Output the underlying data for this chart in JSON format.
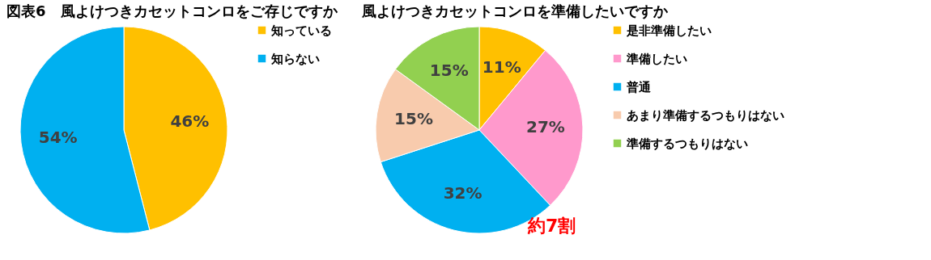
{
  "chart_data": [
    {
      "type": "pie",
      "title": "図表6　風よけつきカセットコンロをご存じですか",
      "categories": [
        "知っている",
        "知らない"
      ],
      "values": [
        46,
        54
      ],
      "colors": [
        "#ffc000",
        "#00b0f0"
      ],
      "value_labels": [
        "46%",
        "54%"
      ],
      "legend": "right"
    },
    {
      "type": "pie",
      "title": "風よけつきカセットコンロを準備したいですか",
      "categories": [
        "是非準備したい",
        "準備したい",
        "普通",
        "あまり準備するつもりはない",
        "準備するつもりはない"
      ],
      "values": [
        11,
        27,
        32,
        15,
        15
      ],
      "colors": [
        "#ffc000",
        "#ff99cc",
        "#00b0f0",
        "#f8cbad",
        "#92d050"
      ],
      "value_labels": [
        "11%",
        "27%",
        "32%",
        "15%",
        "15%"
      ],
      "legend": "right",
      "annotations": [
        "約7割"
      ]
    }
  ]
}
